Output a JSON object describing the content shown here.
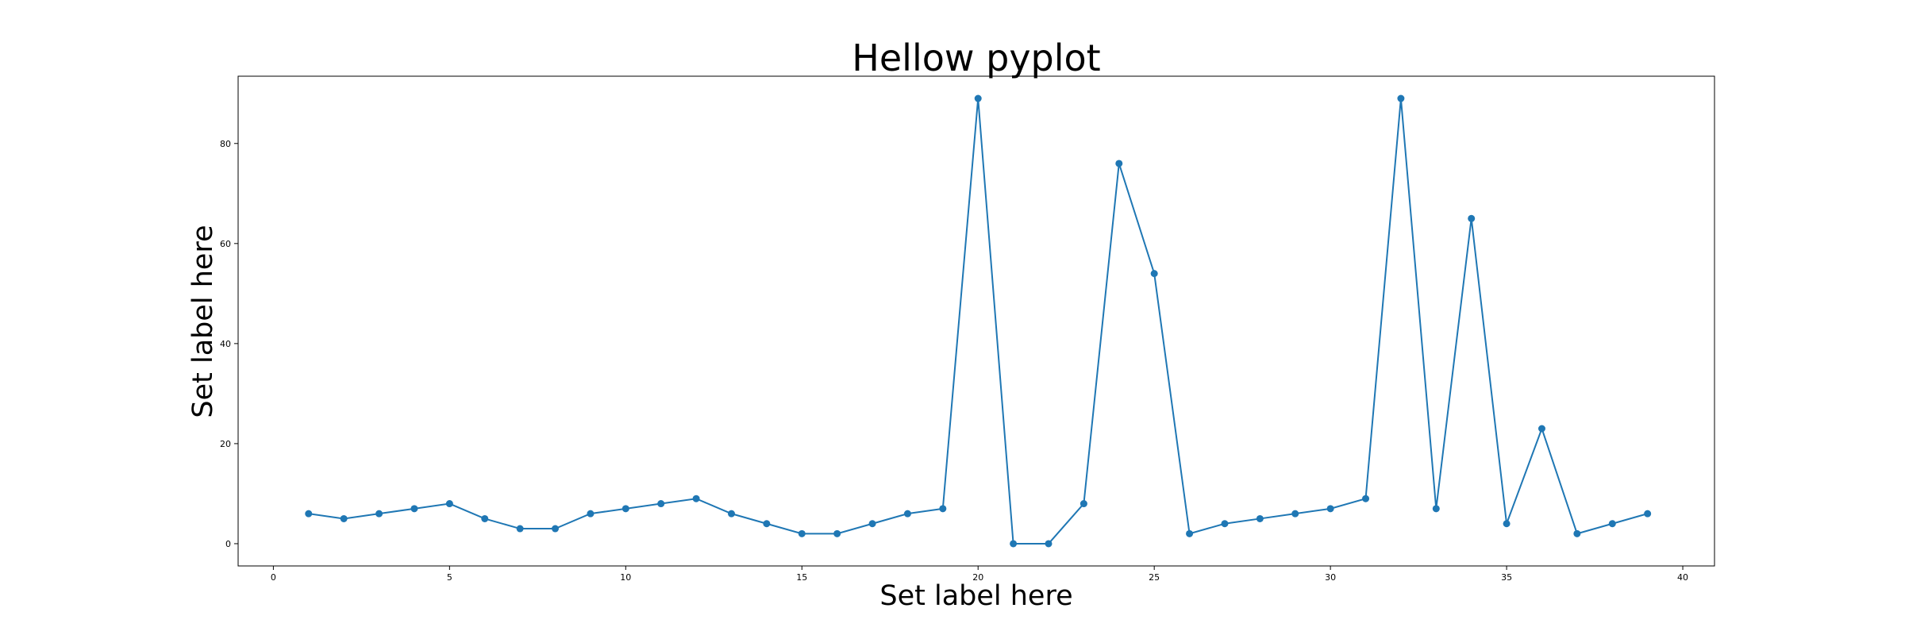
{
  "chart_data": {
    "type": "line",
    "title": "Hellow pyplot",
    "xlabel": "Set label here",
    "ylabel": "Set label here",
    "xlim": [
      -1,
      40.9
    ],
    "ylim": [
      -4.45,
      93.45
    ],
    "xticks": [
      0,
      5,
      10,
      15,
      20,
      25,
      30,
      35,
      40
    ],
    "yticks": [
      0,
      20,
      40,
      60,
      80
    ],
    "grid": false,
    "line_color": "#1f77b4",
    "marker": "circle",
    "series": [
      {
        "x": [
          1,
          2,
          3,
          4,
          5,
          6,
          7,
          8,
          9,
          10,
          11,
          12,
          13,
          14,
          15,
          16,
          17,
          18,
          19,
          20,
          21,
          22,
          23,
          24,
          25,
          26,
          27,
          28,
          29,
          30,
          31,
          32,
          33,
          34,
          35,
          36,
          37,
          38,
          39
        ],
        "y": [
          6,
          5,
          6,
          7,
          8,
          5,
          3,
          3,
          6,
          7,
          8,
          9,
          6,
          4,
          2,
          2,
          4,
          6,
          7,
          89,
          0,
          0,
          8,
          76,
          54,
          2,
          4,
          5,
          6,
          7,
          9,
          89,
          7,
          65,
          4,
          23,
          2,
          4,
          6
        ]
      }
    ]
  }
}
